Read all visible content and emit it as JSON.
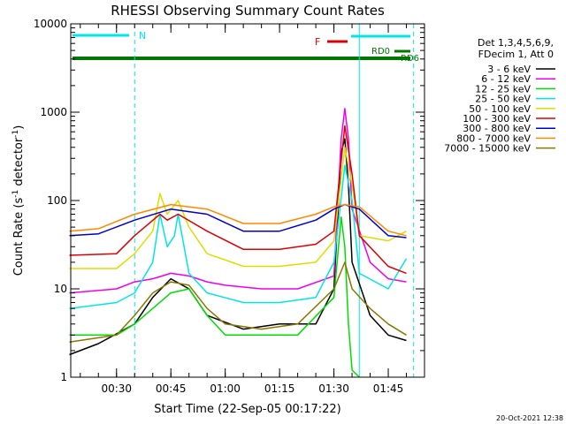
{
  "chart_data": {
    "type": "line",
    "title": "RHESSI Observing Summary Count Rates",
    "xlabel": "Start Time (22-Sep-05 00:17:22)",
    "ylabel": "Count Rate (s⁻¹ detector⁻¹)",
    "ylabel_main": "Count Rate (s",
    "ylabel_sup1": "-1",
    "ylabel_mid": " detector",
    "ylabel_sup2": "-1",
    "ylabel_end": ")",
    "y_scale": "log",
    "ylim": [
      1,
      10000
    ],
    "xlim": [
      "00:17:22",
      "01:55:00"
    ],
    "x_ticks": [
      "00:30",
      "00:45",
      "01:00",
      "01:15",
      "01:30",
      "01:45"
    ],
    "y_ticks": [
      "1",
      "10",
      "100",
      "1000",
      "10000"
    ],
    "legend_title": [
      "Det 1,3,4,5,6,9,",
      "FDecim 1, Att 0"
    ],
    "legend_position": "right",
    "timestamp": "20-Oct-2021 12:38",
    "flags": [
      {
        "name": "N",
        "color": "#00e5e5"
      },
      {
        "name": "F",
        "color": "#dd0000"
      },
      {
        "name": "RD0",
        "color": "#007700"
      },
      {
        "name": "RD6",
        "color": "#007700"
      }
    ],
    "markers": [
      {
        "time": "00:35",
        "style": "dashed"
      },
      {
        "time": "01:37",
        "style": "solid"
      },
      {
        "time": "01:52",
        "style": "dashed"
      }
    ],
    "series": [
      {
        "name": "3 - 6 keV",
        "color": "#000000",
        "points": [
          [
            "00:17",
            1.8
          ],
          [
            "00:25",
            2.4
          ],
          [
            "00:35",
            4
          ],
          [
            "00:40",
            8
          ],
          [
            "00:45",
            13
          ],
          [
            "00:50",
            10
          ],
          [
            "00:55",
            5
          ],
          [
            "01:05",
            3.5
          ],
          [
            "01:15",
            4
          ],
          [
            "01:25",
            4
          ],
          [
            "01:30",
            10
          ],
          [
            "01:32",
            350
          ],
          [
            "01:33",
            500
          ],
          [
            "01:34",
            150
          ],
          [
            "01:35",
            20
          ],
          [
            "01:40",
            5
          ],
          [
            "01:45",
            3
          ],
          [
            "01:50",
            2.6
          ]
        ]
      },
      {
        "name": "6 - 12 keV",
        "color": "#ee00ee",
        "points": [
          [
            "00:17",
            9
          ],
          [
            "00:30",
            10
          ],
          [
            "00:35",
            12
          ],
          [
            "00:40",
            13
          ],
          [
            "00:45",
            15
          ],
          [
            "00:50",
            14
          ],
          [
            "00:55",
            12
          ],
          [
            "01:00",
            11
          ],
          [
            "01:10",
            10
          ],
          [
            "01:20",
            10
          ],
          [
            "01:30",
            14
          ],
          [
            "01:32",
            500
          ],
          [
            "01:33",
            1100
          ],
          [
            "01:34",
            500
          ],
          [
            "01:35",
            80
          ],
          [
            "01:40",
            20
          ],
          [
            "01:45",
            13
          ],
          [
            "01:50",
            12
          ]
        ]
      },
      {
        "name": "12 - 25 keV",
        "color": "#00dd00",
        "points": [
          [
            "00:17",
            3
          ],
          [
            "00:30",
            3
          ],
          [
            "00:35",
            4
          ],
          [
            "00:40",
            6
          ],
          [
            "00:45",
            9
          ],
          [
            "00:50",
            10
          ],
          [
            "00:55",
            5
          ],
          [
            "01:00",
            3
          ],
          [
            "01:10",
            3
          ],
          [
            "01:20",
            3
          ],
          [
            "01:30",
            8
          ],
          [
            "01:32",
            65
          ],
          [
            "01:33",
            30
          ],
          [
            "01:34",
            4
          ],
          [
            "01:35",
            1.2
          ],
          [
            "01:37",
            1
          ]
        ]
      },
      {
        "name": "25 - 50 keV",
        "color": "#00e5e5",
        "points": [
          [
            "00:17",
            6
          ],
          [
            "00:30",
            7
          ],
          [
            "00:35",
            9
          ],
          [
            "00:40",
            20
          ],
          [
            "00:42",
            70
          ],
          [
            "00:44",
            30
          ],
          [
            "00:46",
            40
          ],
          [
            "00:47",
            70
          ],
          [
            "00:50",
            15
          ],
          [
            "00:55",
            9
          ],
          [
            "01:05",
            7
          ],
          [
            "01:15",
            7
          ],
          [
            "01:25",
            8
          ],
          [
            "01:30",
            20
          ],
          [
            "01:33",
            250
          ],
          [
            "01:35",
            100
          ],
          [
            "01:37",
            15
          ],
          [
            "01:45",
            10
          ],
          [
            "01:50",
            22
          ]
        ]
      },
      {
        "name": "50 - 100 keV",
        "color": "#dddd00",
        "points": [
          [
            "00:17",
            17
          ],
          [
            "00:30",
            17
          ],
          [
            "00:35",
            25
          ],
          [
            "00:40",
            45
          ],
          [
            "00:42",
            120
          ],
          [
            "00:44",
            70
          ],
          [
            "00:47",
            100
          ],
          [
            "00:50",
            50
          ],
          [
            "00:55",
            25
          ],
          [
            "01:05",
            18
          ],
          [
            "01:15",
            18
          ],
          [
            "01:25",
            20
          ],
          [
            "01:30",
            35
          ],
          [
            "01:33",
            400
          ],
          [
            "01:35",
            150
          ],
          [
            "01:37",
            40
          ],
          [
            "01:45",
            35
          ],
          [
            "01:50",
            45
          ]
        ]
      },
      {
        "name": "100 - 300 keV",
        "color": "#dd0000",
        "points": [
          [
            "00:17",
            24
          ],
          [
            "00:30",
            25
          ],
          [
            "00:35",
            40
          ],
          [
            "00:42",
            70
          ],
          [
            "00:44",
            60
          ],
          [
            "00:47",
            70
          ],
          [
            "00:55",
            45
          ],
          [
            "01:05",
            28
          ],
          [
            "01:15",
            28
          ],
          [
            "01:25",
            32
          ],
          [
            "01:30",
            45
          ],
          [
            "01:33",
            700
          ],
          [
            "01:35",
            200
          ],
          [
            "01:37",
            40
          ],
          [
            "01:45",
            18
          ],
          [
            "01:50",
            15
          ]
        ]
      },
      {
        "name": "300 - 800 keV",
        "color": "#0000cc",
        "points": [
          [
            "00:17",
            40
          ],
          [
            "00:25",
            42
          ],
          [
            "00:35",
            60
          ],
          [
            "00:45",
            80
          ],
          [
            "00:55",
            70
          ],
          [
            "01:05",
            45
          ],
          [
            "01:15",
            45
          ],
          [
            "01:25",
            60
          ],
          [
            "01:30",
            80
          ],
          [
            "01:33",
            90
          ],
          [
            "01:37",
            80
          ],
          [
            "01:45",
            40
          ],
          [
            "01:50",
            38
          ]
        ]
      },
      {
        "name": "800 - 7000 keV",
        "color": "#ff8800",
        "points": [
          [
            "00:17",
            45
          ],
          [
            "00:25",
            48
          ],
          [
            "00:35",
            70
          ],
          [
            "00:45",
            90
          ],
          [
            "00:55",
            80
          ],
          [
            "01:05",
            55
          ],
          [
            "01:15",
            55
          ],
          [
            "01:25",
            70
          ],
          [
            "01:30",
            85
          ],
          [
            "01:33",
            90
          ],
          [
            "01:37",
            85
          ],
          [
            "01:45",
            45
          ],
          [
            "01:50",
            40
          ]
        ]
      },
      {
        "name": "7000 - 15000 keV",
        "color": "#887700",
        "points": [
          [
            "00:17",
            2.5
          ],
          [
            "00:30",
            3
          ],
          [
            "00:35",
            5
          ],
          [
            "00:40",
            9
          ],
          [
            "00:45",
            12
          ],
          [
            "00:50",
            11
          ],
          [
            "00:55",
            6
          ],
          [
            "01:00",
            4
          ],
          [
            "01:10",
            3.5
          ],
          [
            "01:20",
            4
          ],
          [
            "01:30",
            10
          ],
          [
            "01:33",
            20
          ],
          [
            "01:35",
            10
          ],
          [
            "01:40",
            6
          ],
          [
            "01:45",
            4
          ],
          [
            "01:50",
            3
          ]
        ]
      }
    ]
  }
}
